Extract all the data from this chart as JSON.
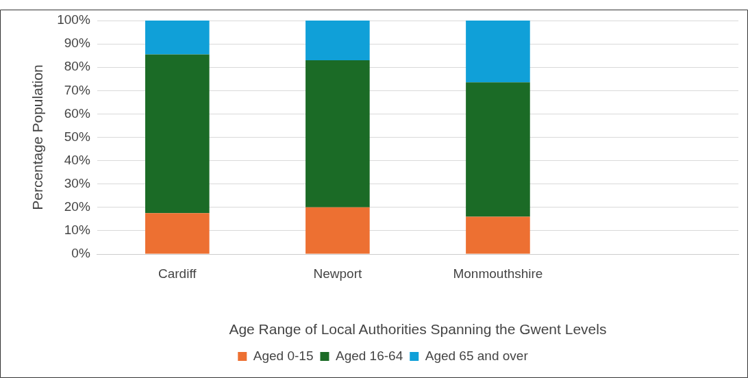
{
  "chart_data": {
    "type": "bar",
    "stacked": true,
    "xlabel": "Age Range of Local Authorities Spanning the Gwent Levels",
    "ylabel": "Percentage Population",
    "categories": [
      "Cardiff",
      "Newport",
      "Monmouthshire",
      null
    ],
    "series": [
      {
        "name": "Aged 0-15",
        "color": "#ed7032",
        "values": [
          17.5,
          20,
          16,
          null
        ]
      },
      {
        "name": "Aged 16-64",
        "color": "#1b6b26",
        "values": [
          68,
          63,
          57.5,
          null
        ]
      },
      {
        "name": "Aged 65 and over",
        "color": "#10a0d8",
        "values": [
          14.5,
          17,
          26.5,
          null
        ]
      }
    ],
    "ylim": [
      0,
      100
    ],
    "yticks": [
      {
        "value": 0,
        "label": "0%"
      },
      {
        "value": 10,
        "label": "10%"
      },
      {
        "value": 20,
        "label": "20%"
      },
      {
        "value": 30,
        "label": "30%"
      },
      {
        "value": 40,
        "label": "40%"
      },
      {
        "value": 50,
        "label": "50%"
      },
      {
        "value": 60,
        "label": "60%"
      },
      {
        "value": 70,
        "label": "70%"
      },
      {
        "value": 80,
        "label": "80%"
      },
      {
        "value": 90,
        "label": "90%"
      },
      {
        "value": 100,
        "label": "100%"
      }
    ],
    "grid": "y",
    "legend": "bottom"
  }
}
